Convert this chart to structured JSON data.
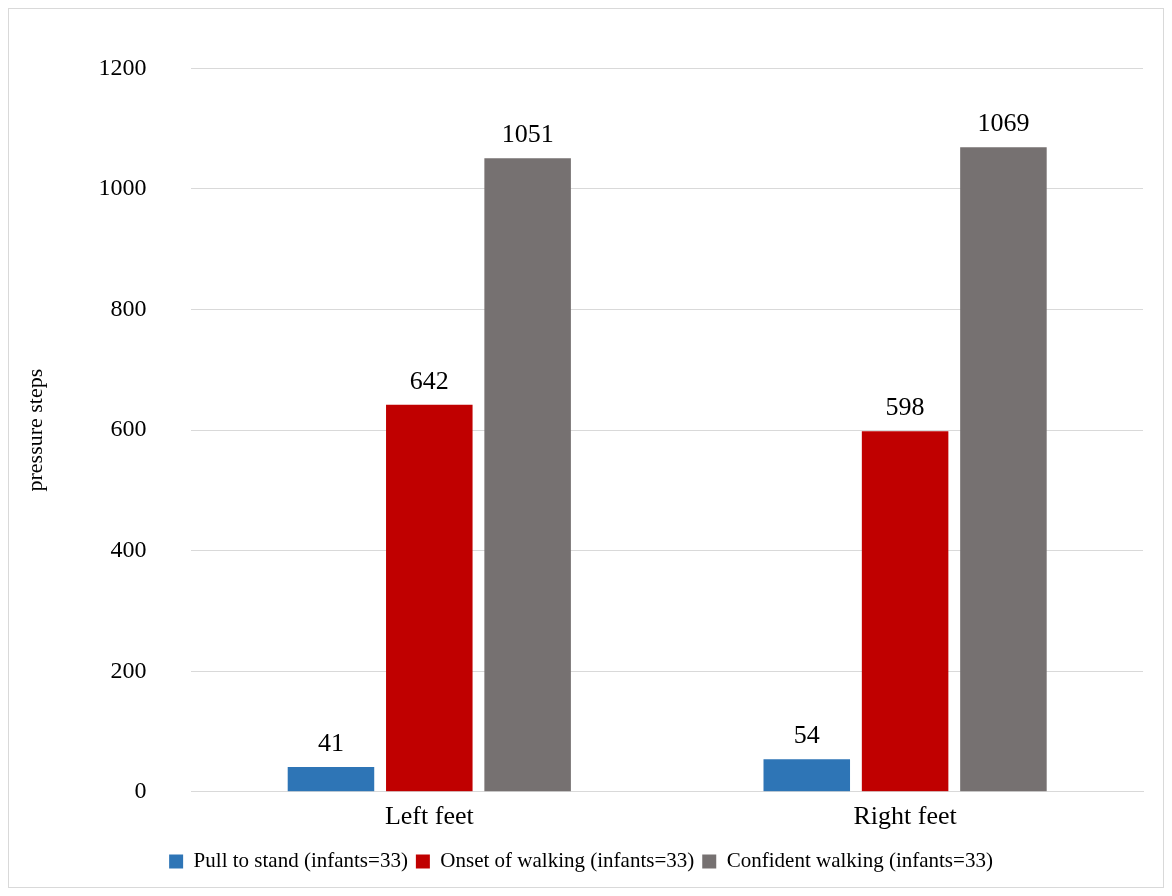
{
  "chart_data": {
    "type": "bar",
    "ylabel": "pressure steps",
    "categories": [
      "Left feet",
      "Right feet"
    ],
    "series": [
      {
        "name": "Pull to stand (infants=33)",
        "color": "#2e75b6",
        "values": [
          41,
          54
        ]
      },
      {
        "name": "Onset of walking (infants=33)",
        "color": "#c00000",
        "values": [
          642,
          598
        ]
      },
      {
        "name": "Confident walking (infants=33)",
        "color": "#767171",
        "values": [
          1051,
          1069
        ]
      }
    ],
    "ylim": [
      0,
      1200
    ],
    "yticks": [
      0,
      200,
      400,
      600,
      800,
      1000,
      1200
    ],
    "grid": "y",
    "legend": "bottom",
    "data_labels": true
  }
}
